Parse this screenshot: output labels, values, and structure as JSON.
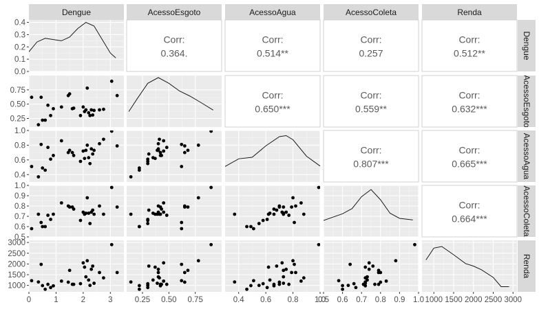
{
  "chart_data": {
    "type": "scatter-matrix",
    "variables": [
      "Dengue",
      "AcessoEsgoto",
      "AcessoAgua",
      "AcessoColeta",
      "Renda"
    ],
    "corr_label": "Corr:",
    "correlations": [
      {
        "row": 0,
        "col": 1,
        "text": "0.364."
      },
      {
        "row": 0,
        "col": 2,
        "text": "0.514**"
      },
      {
        "row": 0,
        "col": 3,
        "text": "0.257"
      },
      {
        "row": 0,
        "col": 4,
        "text": "0.512**"
      },
      {
        "row": 1,
        "col": 2,
        "text": "0.650***"
      },
      {
        "row": 1,
        "col": 3,
        "text": "0.559**"
      },
      {
        "row": 1,
        "col": 4,
        "text": "0.632***"
      },
      {
        "row": 2,
        "col": 3,
        "text": "0.807***"
      },
      {
        "row": 2,
        "col": 4,
        "text": "0.665***"
      },
      {
        "row": 3,
        "col": 4,
        "text": "0.664***"
      }
    ],
    "x_axes": [
      {
        "range": [
          0,
          3.5
        ],
        "ticks": [
          0,
          1,
          2,
          3
        ],
        "labels": [
          "0",
          "1",
          "2",
          "3"
        ]
      },
      {
        "range": [
          0.1,
          1.0
        ],
        "ticks": [
          0.25,
          0.5,
          0.75
        ],
        "labels": [
          "0.25",
          "0.50",
          "0.75"
        ]
      },
      {
        "range": [
          0.3,
          1.0
        ],
        "ticks": [
          0.4,
          0.6,
          0.8,
          1.0
        ],
        "labels": [
          "0.4",
          "0.6",
          "0.8",
          "1.0"
        ]
      },
      {
        "range": [
          0.5,
          1.0
        ],
        "ticks": [
          0.5,
          0.6,
          0.7,
          0.8,
          0.9,
          1.0
        ],
        "labels": [
          "0.5",
          "0.6",
          "0.7",
          "0.8",
          "0.9",
          "1.0"
        ]
      },
      {
        "range": [
          700,
          3100
        ],
        "ticks": [
          1000,
          1500,
          2000,
          2500,
          3000
        ],
        "labels": [
          "1000",
          "1500",
          "2000",
          "2500",
          "3000"
        ]
      }
    ],
    "y_axes": [
      {
        "range": [
          0,
          0.42
        ],
        "ticks": [
          0,
          0.1,
          0.2,
          0.3,
          0.4
        ],
        "labels": [
          "0.0",
          "0.1",
          "0.2",
          "0.3",
          "0.4"
        ]
      },
      {
        "range": [
          0.1,
          1.0
        ],
        "ticks": [
          0.25,
          0.5,
          0.75
        ],
        "labels": [
          "0.25",
          "0.50",
          "0.75"
        ]
      },
      {
        "range": [
          0.3,
          1.0
        ],
        "ticks": [
          0.4,
          0.6,
          0.8,
          1.0
        ],
        "labels": [
          "0.4",
          "0.6",
          "0.8",
          "1.0"
        ]
      },
      {
        "range": [
          0.5,
          1.0
        ],
        "ticks": [
          0.5,
          0.6,
          0.7,
          0.8,
          0.9,
          1.0
        ],
        "labels": [
          "0.5",
          "0.6",
          "0.7",
          "0.8",
          "0.9",
          "1.0"
        ]
      },
      {
        "range": [
          700,
          3100
        ],
        "ticks": [
          1000,
          1500,
          2000,
          2500,
          3000
        ],
        "labels": [
          "1000",
          "1500",
          "2000",
          "2500",
          "3000"
        ]
      }
    ],
    "densities": [
      {
        "var": "Dengue",
        "x": [
          0.0,
          0.3,
          0.6,
          0.9,
          1.2,
          1.5,
          1.8,
          2.1,
          2.4,
          2.7,
          3.0,
          3.2
        ],
        "y": [
          0.16,
          0.24,
          0.27,
          0.26,
          0.25,
          0.28,
          0.35,
          0.4,
          0.37,
          0.26,
          0.15,
          0.11
        ]
      },
      {
        "var": "AcessoEsgoto",
        "x": [
          0.12,
          0.2,
          0.3,
          0.4,
          0.5,
          0.6,
          0.7,
          0.8,
          0.92
        ],
        "y": [
          0.3,
          0.55,
          0.85,
          0.96,
          0.85,
          0.7,
          0.6,
          0.48,
          0.33
        ]
      },
      {
        "var": "AcessoAgua",
        "x": [
          0.3,
          0.4,
          0.5,
          0.6,
          0.7,
          0.75,
          0.8,
          0.9,
          1.0
        ],
        "y": [
          0.3,
          0.45,
          0.48,
          0.7,
          0.88,
          0.9,
          0.82,
          0.5,
          0.31
        ]
      },
      {
        "var": "AcessoColeta",
        "x": [
          0.5,
          0.6,
          0.65,
          0.7,
          0.75,
          0.8,
          0.85,
          0.9,
          0.97
        ],
        "y": [
          0.32,
          0.45,
          0.55,
          0.78,
          0.92,
          0.72,
          0.46,
          0.36,
          0.33
        ]
      },
      {
        "var": "Renda",
        "x": [
          800,
          1000,
          1200,
          1500,
          1800,
          2000,
          2200,
          2500,
          2700,
          2900
        ],
        "y": [
          0.62,
          0.85,
          0.88,
          0.72,
          0.55,
          0.5,
          0.43,
          0.28,
          0.1,
          0.1
        ]
      }
    ],
    "points": [
      {
        "Dengue": 0.1,
        "AcessoEsgoto": 0.62,
        "AcessoAgua": 0.51,
        "AcessoColeta": 0.58,
        "Renda": 1220
      },
      {
        "Dengue": 0.35,
        "AcessoEsgoto": 0.14,
        "AcessoAgua": 0.37,
        "AcessoColeta": 0.72,
        "Renda": 1160
      },
      {
        "Dengue": 0.45,
        "AcessoEsgoto": 0.62,
        "AcessoAgua": 0.81,
        "AcessoColeta": 0.64,
        "Renda": 1980
      },
      {
        "Dengue": 0.5,
        "AcessoEsgoto": 0.22,
        "AcessoAgua": 0.49,
        "AcessoColeta": 0.6,
        "Renda": 990
      },
      {
        "Dengue": 0.6,
        "AcessoEsgoto": 0.22,
        "AcessoAgua": 0.46,
        "AcessoColeta": 0.6,
        "Renda": 820
      },
      {
        "Dengue": 0.7,
        "AcessoEsgoto": 0.48,
        "AcessoAgua": 0.77,
        "AcessoColeta": 0.71,
        "Renda": 1050
      },
      {
        "Dengue": 0.8,
        "AcessoEsgoto": 0.3,
        "AcessoAgua": 0.61,
        "AcessoColeta": 0.67,
        "Renda": 900
      },
      {
        "Dengue": 0.9,
        "AcessoEsgoto": 0.42,
        "AcessoAgua": 0.66,
        "AcessoColeta": 0.72,
        "Renda": 980
      },
      {
        "Dengue": 1.2,
        "AcessoEsgoto": 0.45,
        "AcessoAgua": 0.86,
        "AcessoColeta": 0.83,
        "Renda": 1200
      },
      {
        "Dengue": 1.45,
        "AcessoEsgoto": 0.65,
        "AcessoAgua": 0.7,
        "AcessoColeta": 0.8,
        "Renda": 1150
      },
      {
        "Dengue": 1.5,
        "AcessoEsgoto": 0.68,
        "AcessoAgua": 0.73,
        "AcessoColeta": 0.79,
        "Renda": 1700
      },
      {
        "Dengue": 1.6,
        "AcessoEsgoto": 0.42,
        "AcessoAgua": 0.7,
        "AcessoColeta": 0.79,
        "Renda": 1050
      },
      {
        "Dengue": 1.65,
        "AcessoEsgoto": 0.43,
        "AcessoAgua": 0.66,
        "AcessoColeta": 0.77,
        "Renda": 1050
      },
      {
        "Dengue": 1.9,
        "AcessoEsgoto": 0.3,
        "AcessoAgua": 0.58,
        "AcessoColeta": 0.66,
        "Renda": 1080
      },
      {
        "Dengue": 2.0,
        "AcessoEsgoto": 0.45,
        "AcessoAgua": 0.72,
        "AcessoColeta": 0.74,
        "Renda": 2050
      },
      {
        "Dengue": 2.05,
        "AcessoEsgoto": 0.37,
        "AcessoAgua": 0.62,
        "AcessoColeta": 0.72,
        "Renda": 1850
      },
      {
        "Dengue": 2.1,
        "AcessoEsgoto": 0.4,
        "AcessoAgua": 0.73,
        "AcessoColeta": 0.73,
        "Renda": 1400
      },
      {
        "Dengue": 2.15,
        "AcessoEsgoto": 0.78,
        "AcessoAgua": 0.8,
        "AcessoColeta": 0.88,
        "Renda": 2150
      },
      {
        "Dengue": 2.2,
        "AcessoEsgoto": 0.35,
        "AcessoAgua": 0.63,
        "AcessoColeta": 0.73,
        "Renda": 1250
      },
      {
        "Dengue": 2.25,
        "AcessoEsgoto": 0.3,
        "AcessoAgua": 0.55,
        "AcessoColeta": 0.63,
        "Renda": 1000
      },
      {
        "Dengue": 2.3,
        "AcessoEsgoto": 0.4,
        "AcessoAgua": 0.75,
        "AcessoColeta": 0.74,
        "Renda": 1750
      },
      {
        "Dengue": 2.35,
        "AcessoEsgoto": 0.31,
        "AcessoAgua": 0.68,
        "AcessoColeta": 0.76,
        "Renda": 1900
      },
      {
        "Dengue": 2.4,
        "AcessoEsgoto": 0.39,
        "AcessoAgua": 0.73,
        "AcessoColeta": 0.72,
        "Renda": 1100
      },
      {
        "Dengue": 2.6,
        "AcessoEsgoto": 0.4,
        "AcessoAgua": 0.82,
        "AcessoColeta": 0.8,
        "Renda": 1600
      },
      {
        "Dengue": 2.75,
        "AcessoEsgoto": 0.41,
        "AcessoAgua": 0.88,
        "AcessoColeta": 0.72,
        "Renda": 1350
      },
      {
        "Dengue": 3.05,
        "AcessoEsgoto": 0.9,
        "AcessoAgua": 0.99,
        "AcessoColeta": 0.98,
        "Renda": 2900
      },
      {
        "Dengue": 3.25,
        "AcessoEsgoto": 0.65,
        "AcessoAgua": 0.79,
        "AcessoColeta": 0.79,
        "Renda": 1600
      }
    ]
  }
}
